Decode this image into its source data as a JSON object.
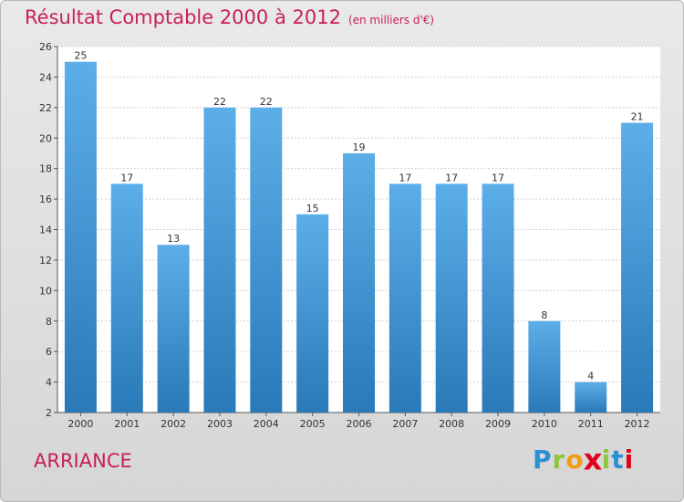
{
  "header": {
    "title": "Résultat Comptable 2000 à 2012",
    "subtitle": "(en milliers d'€)"
  },
  "footer": {
    "location": "ARRIANCE",
    "logo_letters": [
      "P",
      "r",
      "o",
      "x",
      "i",
      "t",
      "i"
    ]
  },
  "colors": {
    "accent": "#c71f5c",
    "bar_top": "#5caee8",
    "bar_bottom": "#2a79b8",
    "logo": [
      "#2a8fd6",
      "#8cc63f",
      "#f39c12",
      "#e2001a",
      "#8cc63f",
      "#2a8fd6",
      "#e2001a"
    ]
  },
  "chart_data": {
    "type": "bar",
    "title": "Résultat Comptable 2000 à 2012",
    "subtitle": "(en milliers d'€)",
    "categories": [
      "2000",
      "2001",
      "2002",
      "2003",
      "2004",
      "2005",
      "2006",
      "2007",
      "2008",
      "2009",
      "2010",
      "2011",
      "2012"
    ],
    "values": [
      25,
      17,
      13,
      22,
      22,
      15,
      19,
      17,
      17,
      17,
      8,
      4,
      21
    ],
    "ylim": [
      2,
      26
    ],
    "yticks": [
      2,
      4,
      6,
      8,
      10,
      12,
      14,
      16,
      18,
      20,
      22,
      24,
      26
    ],
    "xlabel": "",
    "ylabel": "",
    "grid": true
  }
}
